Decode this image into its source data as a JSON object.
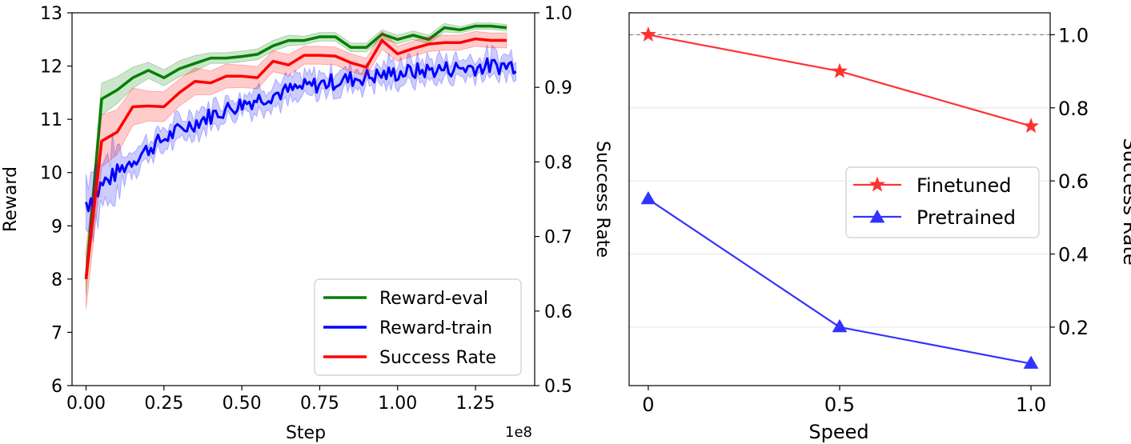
{
  "chart_data": [
    {
      "type": "line",
      "xlabel": "Step",
      "x_offset_label": "1e8",
      "ylabel": "Reward",
      "y2label": "Success Rate",
      "xlim": [
        -0.045,
        1.44
      ],
      "ylim": [
        6,
        13
      ],
      "y2lim": [
        0.5,
        1.0
      ],
      "xticks": [
        "0.00",
        "0.25",
        "0.50",
        "0.75",
        "1.00",
        "1.25"
      ],
      "yticks": [
        "6",
        "7",
        "8",
        "9",
        "10",
        "11",
        "12",
        "13"
      ],
      "y2ticks": [
        "0.5",
        "0.6",
        "0.7",
        "0.8",
        "0.9",
        "1.0"
      ],
      "legend_position": "lower-right",
      "series": [
        {
          "name": "Reward-eval",
          "axis": "left",
          "color": "#008000",
          "x": [
            0.0,
            0.05,
            0.1,
            0.15,
            0.2,
            0.25,
            0.3,
            0.35,
            0.4,
            0.45,
            0.5,
            0.55,
            0.6,
            0.65,
            0.7,
            0.75,
            0.8,
            0.85,
            0.9,
            0.95,
            1.0,
            1.05,
            1.1,
            1.15,
            1.2,
            1.25,
            1.3,
            1.35
          ],
          "y": [
            8.0,
            11.38,
            11.55,
            11.78,
            11.92,
            11.78,
            11.95,
            12.05,
            12.15,
            12.15,
            12.18,
            12.22,
            12.38,
            12.48,
            12.48,
            12.55,
            12.55,
            12.35,
            12.35,
            12.6,
            12.5,
            12.58,
            12.5,
            12.72,
            12.68,
            12.75,
            12.75,
            12.72
          ],
          "band": [
            0.3,
            0.3,
            0.25,
            0.2,
            0.15,
            0.15,
            0.15,
            0.15,
            0.1,
            0.1,
            0.1,
            0.1,
            0.1,
            0.1,
            0.08,
            0.08,
            0.08,
            0.08,
            0.08,
            0.08,
            0.08,
            0.08,
            0.08,
            0.08,
            0.06,
            0.06,
            0.06,
            0.06
          ]
        },
        {
          "name": "Reward-train",
          "axis": "left",
          "color": "#0000ff",
          "x_start": 0.0,
          "x_end": 1.38,
          "points": 180,
          "start_value": 9.45,
          "end_value": 12.02,
          "band": 0.2
        },
        {
          "name": "Success Rate",
          "axis": "right",
          "color": "#ff0000",
          "x": [
            0.0,
            0.05,
            0.1,
            0.15,
            0.2,
            0.25,
            0.3,
            0.35,
            0.4,
            0.45,
            0.5,
            0.55,
            0.6,
            0.65,
            0.7,
            0.75,
            0.8,
            0.85,
            0.9,
            0.95,
            1.0,
            1.05,
            1.1,
            1.15,
            1.2,
            1.25,
            1.3,
            1.35
          ],
          "y": [
            0.643,
            0.828,
            0.84,
            0.874,
            0.875,
            0.874,
            0.893,
            0.908,
            0.906,
            0.915,
            0.915,
            0.913,
            0.935,
            0.93,
            0.943,
            0.943,
            0.942,
            0.933,
            0.927,
            0.963,
            0.945,
            0.952,
            0.958,
            0.96,
            0.96,
            0.965,
            0.963,
            0.963
          ],
          "band": [
            0.04,
            0.035,
            0.03,
            0.025,
            0.02,
            0.02,
            0.018,
            0.018,
            0.016,
            0.016,
            0.015,
            0.015,
            0.014,
            0.014,
            0.012,
            0.012,
            0.012,
            0.012,
            0.012,
            0.012,
            0.01,
            0.01,
            0.01,
            0.01,
            0.01,
            0.01,
            0.01,
            0.01
          ]
        }
      ]
    },
    {
      "type": "line",
      "xlabel": "Speed",
      "ylabel": "",
      "y2label": "Success Rate",
      "xlim": [
        -0.05,
        1.05
      ],
      "ylim": [
        0.04,
        1.06
      ],
      "xticks": [
        "0",
        "0.5",
        "1.0"
      ],
      "y2ticks": [
        "0.2",
        "0.4",
        "0.6",
        "0.8",
        "1.0"
      ],
      "reference_line": 1.0,
      "grid": true,
      "legend_position": "center-right",
      "series": [
        {
          "name": "Finetuned",
          "color": "#ff3333",
          "marker": "star",
          "x": [
            0,
            0.5,
            1.0
          ],
          "y": [
            1.0,
            0.9,
            0.75
          ]
        },
        {
          "name": "Pretrained",
          "color": "#3333ff",
          "marker": "triangle",
          "x": [
            0,
            0.5,
            1.0
          ],
          "y": [
            0.55,
            0.2,
            0.1
          ]
        }
      ]
    }
  ]
}
